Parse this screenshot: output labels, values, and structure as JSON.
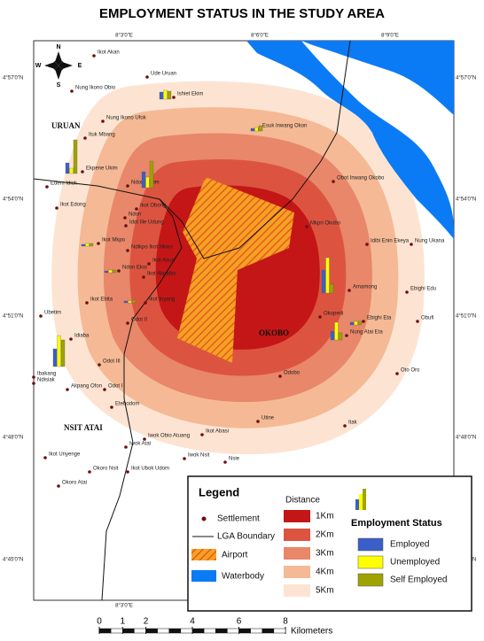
{
  "title": "EMPLOYMENT STATUS IN THE STUDY AREA",
  "compass": {
    "n": "N",
    "s": "S",
    "e": "E",
    "w": "W"
  },
  "region_labels": [
    "URUAN",
    "OKOBO",
    "NSIT ATAI"
  ],
  "lon_labels": [
    "8°3'0\"E",
    "8°6'0\"E",
    "8°9'0\"E"
  ],
  "lat_labels": [
    "4°57'0\"N",
    "4°54'0\"N",
    "4°51'0\"N",
    "4°48'0\"N",
    "4°45'0\"N"
  ],
  "settlements": [
    "Ikot Akan",
    "Ude Uruan",
    "Nung Ikono Obio",
    "Ishiet Ekim",
    "Nung Ikono Ufok",
    "Esuk Inwang Okon",
    "Ituk Mbang",
    "Ekpene Ukim",
    "Ndon Ebom",
    "Obot Inwang Okobo",
    "Edem Idiok",
    "Ikot Edong",
    "Ikot Obong",
    "Ndon",
    "Idot Ille Udung",
    "Mkpri Okobo",
    "Idibi Enin Ekeya",
    "Nung Ukana",
    "Ikot Mkpo",
    "Ndikpo Ikot Nkwo",
    "Ikot Asua",
    "Ndon Ekoi",
    "Ikot Akpabio",
    "Amamong",
    "Ebighi Edu",
    "Ikot Ebita",
    "Ikot Inyang",
    "Okopedi",
    "Ebighi Eta",
    "Obufi",
    "Ubetim",
    "Odot II",
    "Nung Atai Eta",
    "Idiaba",
    "Odot III",
    "Ibakang",
    "Ndisiak",
    "Oto Oro",
    "Odobo",
    "Akpang Ofon",
    "Odot I",
    "Etebodom",
    "Utine",
    "Itak",
    "Iwok Obio Atuang",
    "Ikot Abasi",
    "Iwok Atai",
    "Ikot Unyenge",
    "Iwok Nsit",
    "Nsie",
    "Okoro Nsit",
    "Ikot Ubok Udom",
    "Okoro Atai"
  ],
  "bar_charts": [
    {
      "values": [
        8,
        10,
        9
      ]
    },
    {
      "values": [
        3,
        4,
        6
      ]
    },
    {
      "values": [
        12,
        6,
        38
      ]
    },
    {
      "values": [
        18,
        12,
        30
      ]
    },
    {
      "values": [
        2,
        3,
        3
      ]
    },
    {
      "values": [
        2,
        3,
        3
      ]
    },
    {
      "values": [
        2,
        2,
        3
      ]
    },
    {
      "values": [
        26,
        40,
        10
      ]
    },
    {
      "values": [
        10,
        20,
        8
      ]
    },
    {
      "values": [
        3,
        4,
        4
      ]
    },
    {
      "values": [
        20,
        35,
        30
      ]
    }
  ],
  "legend": {
    "title": "Legend",
    "settlement": "Settlement",
    "lga_boundary": "LGA Boundary",
    "airport": "Airport",
    "waterbody": "Waterbody",
    "distance_title": "Distance",
    "distances": [
      "1Km",
      "2Km",
      "3Km",
      "4Km",
      "5Km"
    ],
    "status_title": "Employment Status",
    "statuses": [
      {
        "name": "Employed",
        "color": "#3a5fc8"
      },
      {
        "name": "Unemployed",
        "color": "#ffff00"
      },
      {
        "name": "Self Employed",
        "color": "#9fa300"
      }
    ]
  },
  "scale_bar": {
    "ticks": [
      0,
      1,
      2,
      4,
      6,
      8
    ],
    "unit": "Kilometers"
  }
}
